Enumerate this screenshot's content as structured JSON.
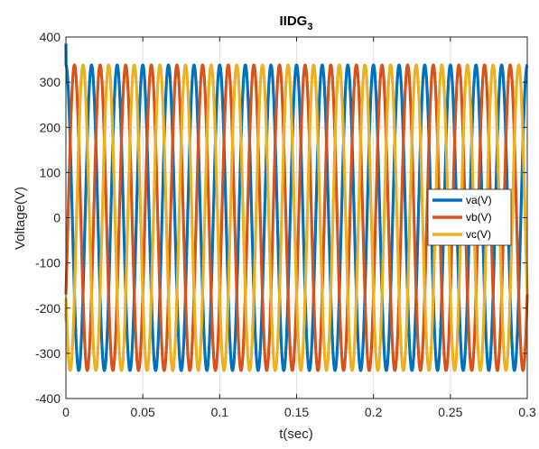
{
  "chart_data": {
    "type": "line",
    "title": "IIDG",
    "title_subscript": "3",
    "xlabel": "t(sec)",
    "ylabel": "Voltage(V)",
    "xlim": [
      0,
      0.3
    ],
    "ylim": [
      -400,
      400
    ],
    "xticks": [
      0,
      0.05,
      0.1,
      0.15,
      0.2,
      0.25,
      0.3
    ],
    "xtick_labels": [
      "0",
      "0.05",
      "0.1",
      "0.15",
      "0.2",
      "0.25",
      "0.3"
    ],
    "yticks": [
      -400,
      -300,
      -200,
      -100,
      0,
      100,
      200,
      300,
      400
    ],
    "ytick_labels": [
      "-400",
      "-300",
      "-200",
      "-100",
      "0",
      "100",
      "200",
      "300",
      "400"
    ],
    "grid": true,
    "legend_position": "right",
    "frequency_hz": 60,
    "series": [
      {
        "name": "va(V)",
        "color": "#0072BD",
        "amplitude": 338,
        "phase_deg": 90,
        "start_value": 385
      },
      {
        "name": "vb(V)",
        "color": "#D95319",
        "amplitude": 338,
        "phase_deg": -30,
        "start_value": -170
      },
      {
        "name": "vc(V)",
        "color": "#EDB120",
        "amplitude": 338,
        "phase_deg": 210,
        "start_value": -230
      }
    ]
  }
}
